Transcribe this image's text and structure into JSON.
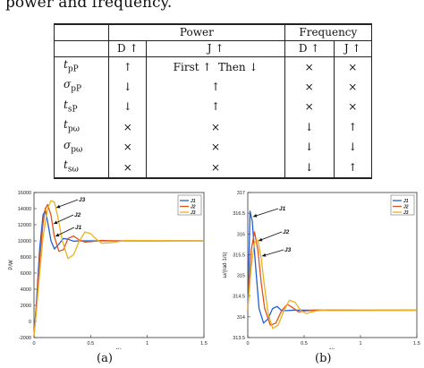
{
  "intro_text": "power and frequency.",
  "table": {
    "group_headers": [
      "Power",
      "Frequency"
    ],
    "sub_headers": [
      "D ↑",
      "J ↑",
      "D ↑",
      "J ↑"
    ],
    "rows": [
      {
        "symbol": "t",
        "sub": "pP",
        "cells": [
          "↑",
          "First ↑  Then ↓",
          "×",
          "×"
        ]
      },
      {
        "symbol": "σ",
        "sub": "pP",
        "cells": [
          "↓",
          "↑",
          "×",
          "×"
        ]
      },
      {
        "symbol": "t",
        "sub": "sP",
        "cells": [
          "↓",
          "↑",
          "×",
          "×"
        ]
      },
      {
        "symbol": "t",
        "sub": "pω",
        "cells": [
          "×",
          "×",
          "↓",
          "↑"
        ]
      },
      {
        "symbol": "σ",
        "sub": "pω",
        "cells": [
          "×",
          "×",
          "↓",
          "↓"
        ]
      },
      {
        "symbol": "t",
        "sub": "sω",
        "cells": [
          "×",
          "×",
          "↓",
          "↑"
        ]
      }
    ]
  },
  "chart_data": [
    {
      "type": "line",
      "caption": "(a)",
      "xlabel": "t/s",
      "ylabel": "P/W",
      "xlim": [
        0,
        1.5
      ],
      "ylim": [
        -2000,
        16000
      ],
      "xticks": [
        "0",
        "0.5",
        "1",
        "1.5"
      ],
      "yticks": [
        "-2000",
        "0",
        "2000",
        "4000",
        "6000",
        "8000",
        "10000",
        "12000",
        "14000",
        "16000"
      ],
      "legend": [
        "J1",
        "J2",
        "J3"
      ],
      "legend_position": "top-right",
      "series_colors": [
        "#1f5fd6",
        "#e0531a",
        "#edb120"
      ],
      "annotations": [
        "J3",
        "J2",
        "J1"
      ],
      "series": [
        {
          "name": "J1",
          "x": [
            0,
            0.02,
            0.05,
            0.08,
            0.1,
            0.12,
            0.15,
            0.18,
            0.22,
            0.26,
            0.3,
            0.35,
            0.4,
            0.5,
            0.6,
            1.5
          ],
          "y": [
            -1800,
            2000,
            9000,
            13200,
            13800,
            12400,
            10000,
            9000,
            9600,
            10300,
            10200,
            9950,
            10000,
            10000,
            10000,
            10000
          ]
        },
        {
          "name": "J2",
          "x": [
            0,
            0.02,
            0.05,
            0.08,
            0.1,
            0.12,
            0.15,
            0.18,
            0.22,
            0.26,
            0.3,
            0.35,
            0.4,
            0.45,
            0.5,
            0.6,
            0.7,
            1.5
          ],
          "y": [
            -1800,
            1500,
            7500,
            12200,
            14000,
            14500,
            13200,
            10500,
            8700,
            8900,
            10300,
            10600,
            10100,
            9850,
            9900,
            10050,
            10000,
            10000
          ]
        },
        {
          "name": "J3",
          "x": [
            0,
            0.02,
            0.05,
            0.08,
            0.12,
            0.15,
            0.18,
            0.21,
            0.25,
            0.3,
            0.35,
            0.4,
            0.45,
            0.5,
            0.55,
            0.6,
            0.7,
            0.8,
            1.5
          ],
          "y": [
            -1800,
            1000,
            6000,
            10500,
            14000,
            15000,
            14800,
            13000,
            10000,
            7800,
            8300,
            10000,
            11100,
            10900,
            10200,
            9700,
            9800,
            10050,
            10000
          ]
        }
      ]
    },
    {
      "type": "line",
      "caption": "(b)",
      "xlabel": "t/s",
      "ylabel": "ω/(rad·1/s)",
      "xlim": [
        0,
        1.5
      ],
      "ylim": [
        313.5,
        317
      ],
      "xticks": [
        "0",
        "0.5",
        "1",
        "1.5"
      ],
      "yticks": [
        "313.5",
        "314",
        "314.5",
        "315",
        "315.5",
        "316",
        "316.5",
        "317"
      ],
      "legend": [
        "J1",
        "J2",
        "J3"
      ],
      "legend_position": "top-right",
      "series_colors": [
        "#1f5fd6",
        "#e0531a",
        "#edb120"
      ],
      "annotations": [
        "J1",
        "J2",
        "J3"
      ],
      "series": [
        {
          "name": "J1",
          "x": [
            0,
            0.02,
            0.04,
            0.07,
            0.1,
            0.14,
            0.18,
            0.22,
            0.26,
            0.3,
            0.35,
            0.4,
            0.5,
            1.5
          ],
          "y": [
            314.16,
            316.55,
            316.3,
            315.2,
            314.2,
            313.85,
            313.95,
            314.2,
            314.25,
            314.15,
            314.15,
            314.16,
            314.16,
            314.16
          ]
        },
        {
          "name": "J2",
          "x": [
            0,
            0.03,
            0.06,
            0.09,
            0.12,
            0.15,
            0.2,
            0.25,
            0.3,
            0.35,
            0.4,
            0.45,
            0.5,
            0.6,
            1.5
          ],
          "y": [
            314.16,
            315.6,
            316.05,
            315.6,
            314.8,
            314.2,
            313.8,
            313.85,
            314.15,
            314.3,
            314.22,
            314.12,
            314.14,
            314.16,
            314.16
          ]
        },
        {
          "name": "J3",
          "x": [
            0,
            0.03,
            0.06,
            0.09,
            0.12,
            0.15,
            0.18,
            0.22,
            0.27,
            0.32,
            0.37,
            0.42,
            0.47,
            0.52,
            0.6,
            0.7,
            1.5
          ],
          "y": [
            314.16,
            315.2,
            315.8,
            315.85,
            315.4,
            314.7,
            314.1,
            313.72,
            313.8,
            314.15,
            314.4,
            314.35,
            314.15,
            314.08,
            314.14,
            314.17,
            314.16
          ]
        }
      ]
    }
  ]
}
